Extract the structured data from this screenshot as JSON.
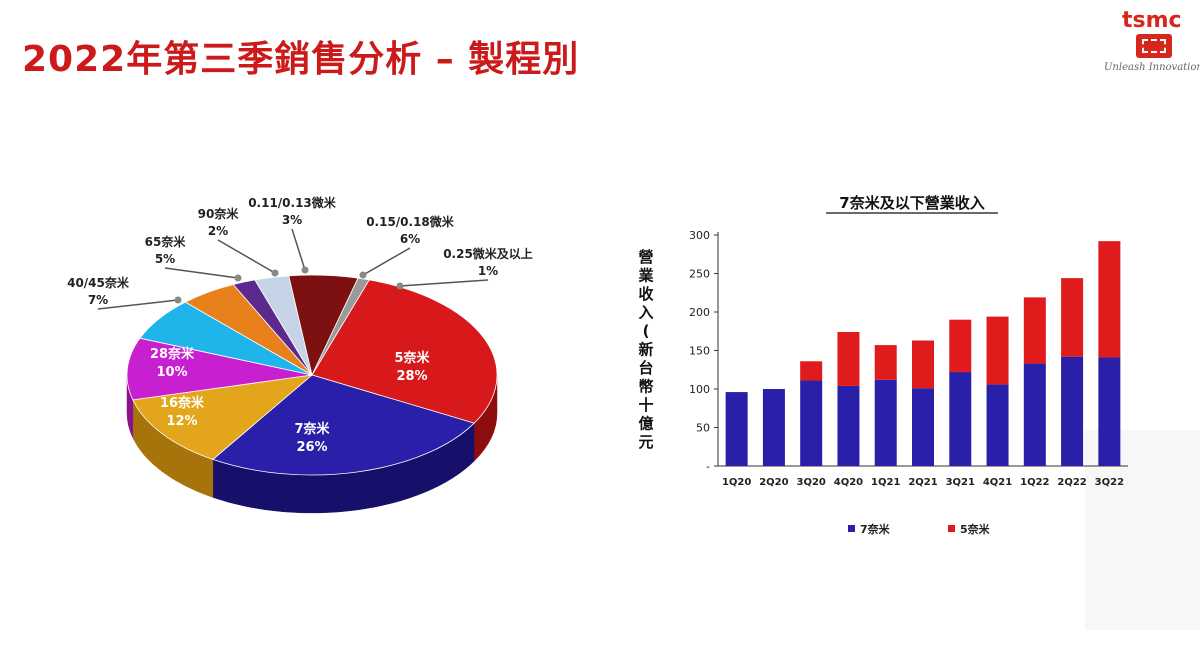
{
  "slide": {
    "title": "2022年第三季銷售分析 – 製程別",
    "logo": {
      "text": "tsmc",
      "tagline": "Unleash Innovation"
    }
  },
  "chart_data": [
    {
      "type": "pie",
      "title": "",
      "slices": [
        {
          "label": "5奈米",
          "percent": "28%",
          "value": 28,
          "color": "#d7191b",
          "side": "#8e0e10"
        },
        {
          "label": "7奈米",
          "percent": "26%",
          "value": 26,
          "color": "#2a1fa8",
          "side": "#16106a"
        },
        {
          "label": "16奈米",
          "percent": "12%",
          "value": 12,
          "color": "#e3a51c",
          "side": "#a7730b"
        },
        {
          "label": "28奈米",
          "percent": "10%",
          "value": 10,
          "color": "#c81fd0",
          "side": "#8a128f"
        },
        {
          "label": "40/45奈米",
          "percent": "7%",
          "value": 7,
          "color": "#1fb4ea",
          "side": "#137ca3"
        },
        {
          "label": "65奈米",
          "percent": "5%",
          "value": 5,
          "color": "#e8801c",
          "side": "#a0550c"
        },
        {
          "label": "90奈米",
          "percent": "2%",
          "value": 2,
          "color": "#5c2a8c",
          "side": "#3b1a5c"
        },
        {
          "label": "0.11/0.13微米",
          "percent": "3%",
          "value": 3,
          "color": "#c7d3e6",
          "side": "#8e9bb3"
        },
        {
          "label": "0.15/0.18微米",
          "percent": "6%",
          "value": 6,
          "color": "#7d1010",
          "side": "#4c0808"
        },
        {
          "label": "0.25微米及以上",
          "percent": "1%",
          "value": 1,
          "color": "#9a9a9a",
          "side": "#666666"
        }
      ]
    },
    {
      "type": "bar",
      "stacked": true,
      "title": "7奈米及以下營業收入",
      "ylabel": "營業收入(新台幣十億元",
      "categories": [
        "1Q20",
        "2Q20",
        "3Q20",
        "4Q20",
        "1Q21",
        "2Q21",
        "3Q21",
        "4Q21",
        "1Q22",
        "2Q22",
        "3Q22"
      ],
      "ylim": [
        0,
        300
      ],
      "yticks": [
        "-",
        "50",
        "100",
        "150",
        "200",
        "250",
        "300"
      ],
      "series": [
        {
          "name": "7奈米",
          "color": "#2a1fa8",
          "values": [
            96,
            100,
            111,
            104,
            112,
            101,
            122,
            106,
            133,
            142,
            141
          ]
        },
        {
          "name": "5奈米",
          "color": "#e01b1b",
          "values": [
            0,
            0,
            25,
            70,
            45,
            62,
            68,
            88,
            86,
            102,
            151
          ]
        }
      ],
      "legend_position": "bottom",
      "grid": false
    }
  ]
}
